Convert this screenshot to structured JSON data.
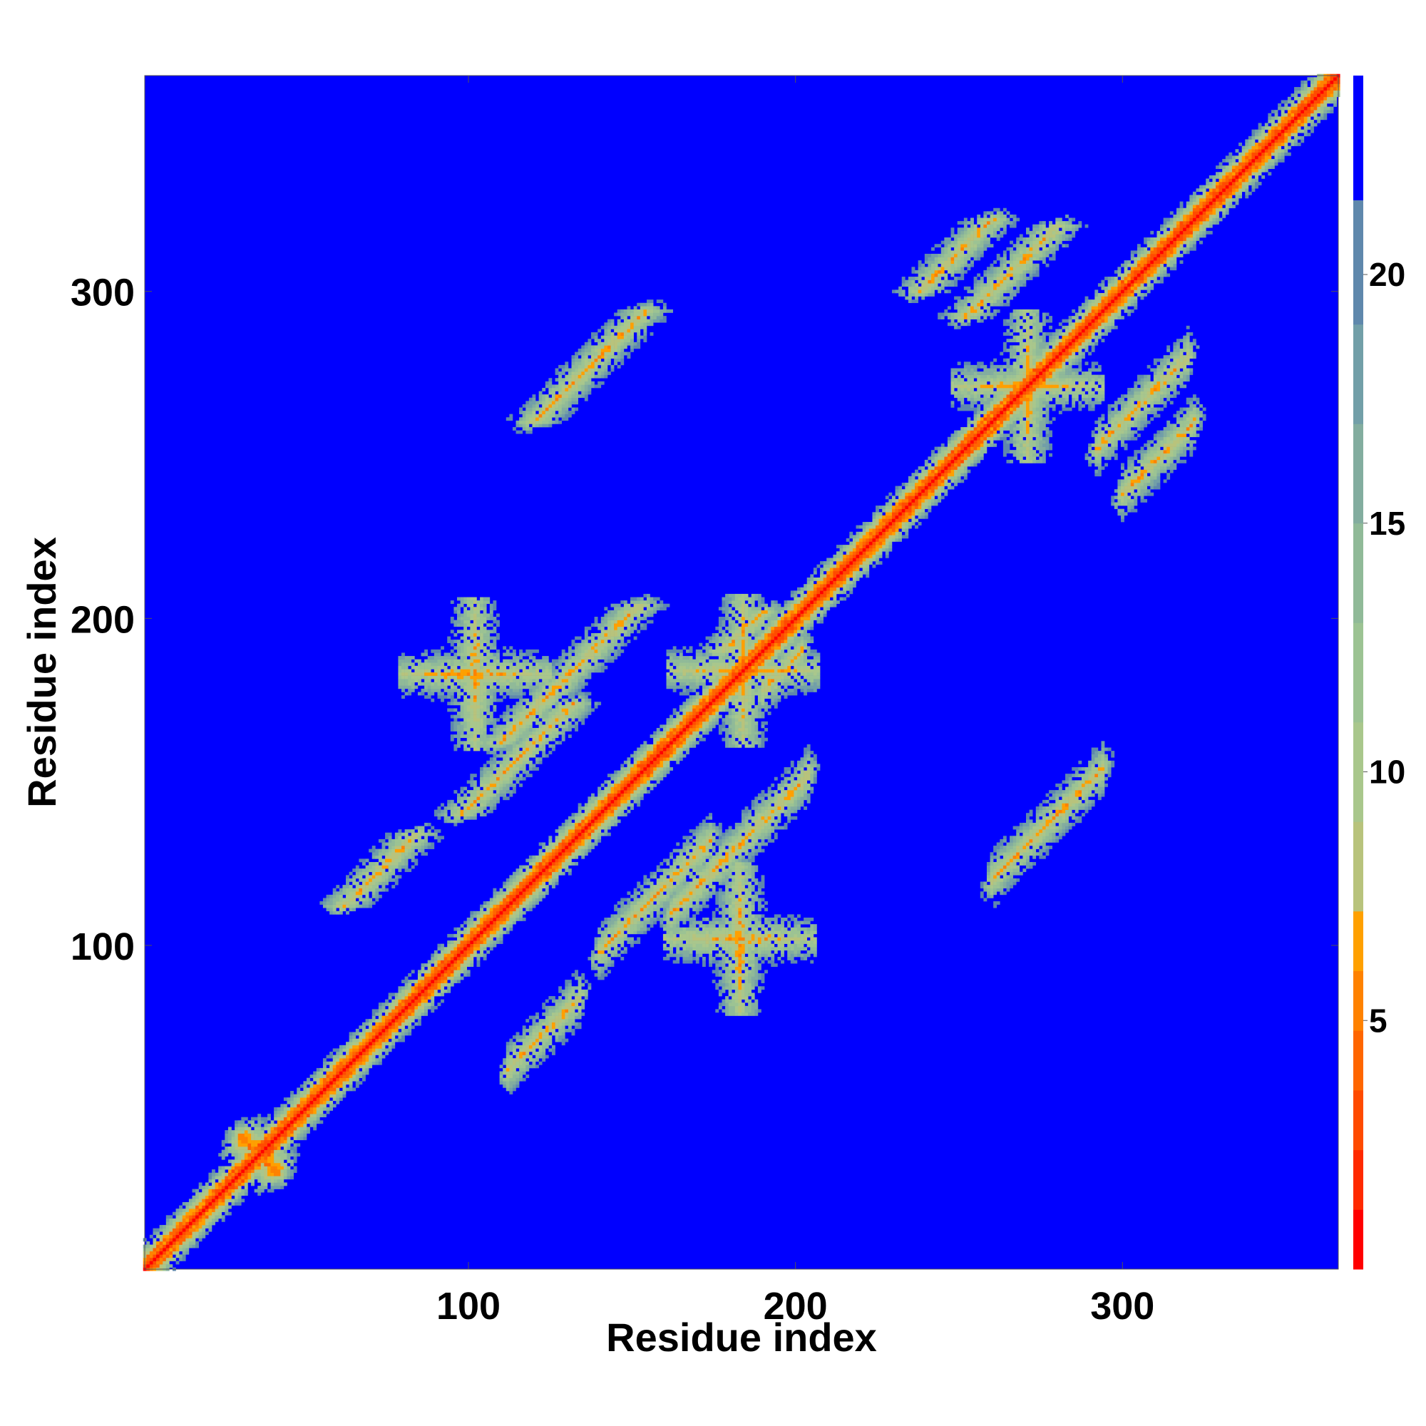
{
  "chart_data": {
    "type": "heatmap",
    "title": "",
    "xlabel": "Residue index",
    "ylabel": "Residue index",
    "n_residues": 366,
    "xlim": [
      1,
      366
    ],
    "ylim": [
      1,
      366
    ],
    "x_ticks": [
      100,
      200,
      300
    ],
    "y_ticks": [
      100,
      200,
      300
    ],
    "colorbar": {
      "range": [
        0,
        24
      ],
      "ticks": [
        5,
        10,
        15,
        20
      ],
      "bands": [
        {
          "from": 0,
          "to": 1.2,
          "color": "#ff0000"
        },
        {
          "from": 1.2,
          "to": 2.4,
          "color": "#ff2a00"
        },
        {
          "from": 2.4,
          "to": 3.6,
          "color": "#ff4b00"
        },
        {
          "from": 3.6,
          "to": 4.8,
          "color": "#ff6600"
        },
        {
          "from": 4.8,
          "to": 6.0,
          "color": "#ff8200"
        },
        {
          "from": 6.0,
          "to": 7.2,
          "color": "#ffa000"
        },
        {
          "from": 7.2,
          "to": 9.0,
          "color": "#b8c37c"
        },
        {
          "from": 9.0,
          "to": 11.0,
          "color": "#a9c78c"
        },
        {
          "from": 11.0,
          "to": 13.0,
          "color": "#9cc393"
        },
        {
          "from": 13.0,
          "to": 15.0,
          "color": "#90ba98"
        },
        {
          "from": 15.0,
          "to": 17.0,
          "color": "#83ad9f"
        },
        {
          "from": 17.0,
          "to": 19.0,
          "color": "#729fa8"
        },
        {
          "from": 19.0,
          "to": 21.5,
          "color": "#5f88ac"
        },
        {
          "from": 21.5,
          "to": 24.0,
          "color": "#0000ff"
        }
      ]
    },
    "background_color": "#0000ff",
    "grid": false,
    "legend": "colorbar-right",
    "features": [
      {
        "kind": "diagonal",
        "from": 1,
        "to": 366
      },
      {
        "kind": "antiparallel",
        "p": 67,
        "s": 72,
        "len": 78
      },
      {
        "kind": "antiparallel",
        "p": 50,
        "s": 188,
        "len": 48
      },
      {
        "kind": "antiparallel",
        "p": 93,
        "s": 232,
        "len": 64
      },
      {
        "kind": "antiparallel",
        "p": 123,
        "s": 183,
        "len": 55
      },
      {
        "kind": "antiparallel",
        "p": 170,
        "s": 265,
        "len": 52
      },
      {
        "kind": "antiparallel",
        "p": 209,
        "s": 280,
        "len": 72
      },
      {
        "kind": "antiparallel",
        "p": 178,
        "s": 345,
        "len": 60
      },
      {
        "kind": "antiparallel",
        "p": 293,
        "s": 368,
        "len": 80
      },
      {
        "kind": "antiparallel",
        "p": 238,
        "s": 396,
        "len": 56
      },
      {
        "kind": "antiparallel",
        "p": 274,
        "s": 474,
        "len": 64
      },
      {
        "kind": "antiparallel",
        "p": 263,
        "s": 551,
        "len": 62
      },
      {
        "kind": "antiparallel",
        "p": 181,
        "s": 522,
        "len": 30
      },
      {
        "kind": "parallel",
        "x0": 23,
        "y0": 74,
        "len": 32
      },
      {
        "kind": "parallel",
        "x0": 140,
        "y0": 98,
        "len": 34
      },
      {
        "kind": "parallel",
        "x0": 162,
        "y0": 110,
        "len": 42
      },
      {
        "kind": "parallel",
        "x0": 260,
        "y0": 120,
        "len": 34
      },
      {
        "kind": "parallel",
        "x0": 60,
        "y0": 148,
        "len": 32
      },
      {
        "kind": "parallel",
        "x0": 60,
        "y0": 300,
        "len": 26
      },
      {
        "kind": "parallel",
        "x0": 27,
        "y0": 282,
        "len": 36
      },
      {
        "kind": "parallel",
        "x0": 155,
        "y0": 244,
        "len": 18
      },
      {
        "kind": "parallel",
        "x0": 62,
        "y0": 244,
        "len": 20
      },
      {
        "kind": "parallel",
        "x0": 270,
        "y0": 290,
        "len": 40
      },
      {
        "kind": "parallel",
        "x0": 292,
        "y0": 252,
        "len": 28
      },
      {
        "kind": "parallel",
        "x0": 300,
        "y0": 238,
        "len": 22
      },
      {
        "kind": "parallel",
        "x0": 263,
        "y0": 268,
        "len": 20
      },
      {
        "kind": "parallel",
        "x0": 198,
        "y0": 305,
        "len": 26
      },
      {
        "kind": "parallel",
        "x0": 112,
        "y0": 62,
        "len": 22
      },
      {
        "kind": "parallel",
        "x0": 120,
        "y0": 248,
        "len": 24
      },
      {
        "kind": "parallel",
        "x0": 108,
        "y0": 293,
        "len": 20
      },
      {
        "kind": "parallel",
        "x0": 190,
        "y0": 178,
        "len": 12
      },
      {
        "kind": "cross",
        "x": 184,
        "y": 184
      },
      {
        "kind": "cross",
        "x": 102,
        "y": 183
      },
      {
        "kind": "cross",
        "x": 183,
        "y": 102
      },
      {
        "kind": "cross",
        "x": 271,
        "y": 271
      }
    ]
  }
}
